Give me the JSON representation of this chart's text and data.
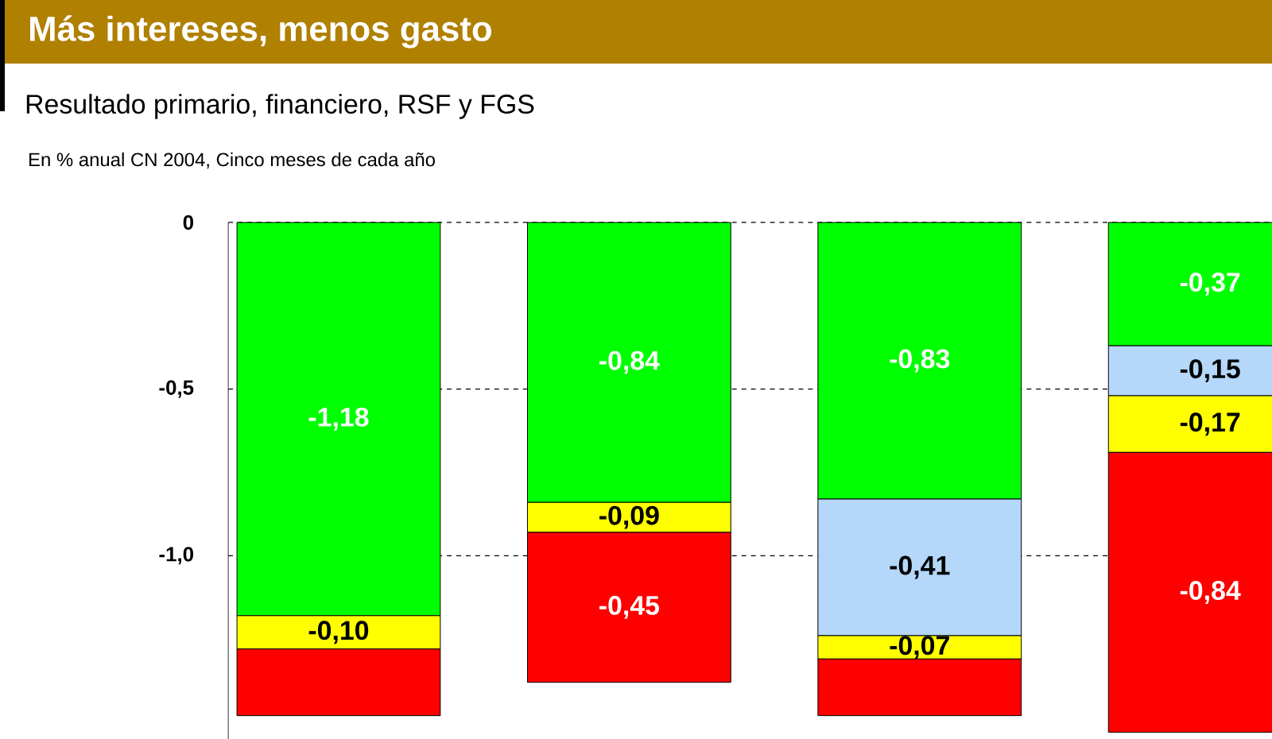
{
  "chart_data": {
    "type": "bar",
    "stacked": true,
    "title": "Más intereses, menos gasto",
    "subtitle": "Resultado primario, financiero, RSF y FGS",
    "annotations": [
      "En % anual CN 2004, Cinco meses de cada año"
    ],
    "categories": [
      null,
      null,
      null,
      null
    ],
    "series": [
      {
        "color": "#00ff00",
        "values": [
          -1.18,
          -0.84,
          -0.83,
          -0.37
        ],
        "value_labels": [
          "-1,18",
          "-0,84",
          "-0,83",
          "-0,37"
        ]
      },
      {
        "color": "#b4d7fa",
        "values": [
          null,
          null,
          -0.41,
          -0.15
        ],
        "value_labels": [
          null,
          null,
          "-0,41",
          "-0,15"
        ]
      },
      {
        "color": "#ffff00",
        "values": [
          -0.1,
          -0.09,
          -0.07,
          -0.17
        ],
        "value_labels": [
          "-0,10",
          "-0,09",
          "-0,07",
          "-0,17"
        ]
      },
      {
        "color": "#ff0000",
        "values": [
          -0.2,
          -0.45,
          -0.17,
          -0.84
        ],
        "value_labels": [
          null,
          "-0,45",
          null,
          "-0,84"
        ]
      }
    ],
    "ylim": [
      -1.55,
      0
    ],
    "yticks": [
      0,
      {
        "value": -0.5,
        "label": "-0,5"
      },
      {
        "value": -1.0,
        "label": "-1,0"
      }
    ],
    "grid": "y"
  }
}
